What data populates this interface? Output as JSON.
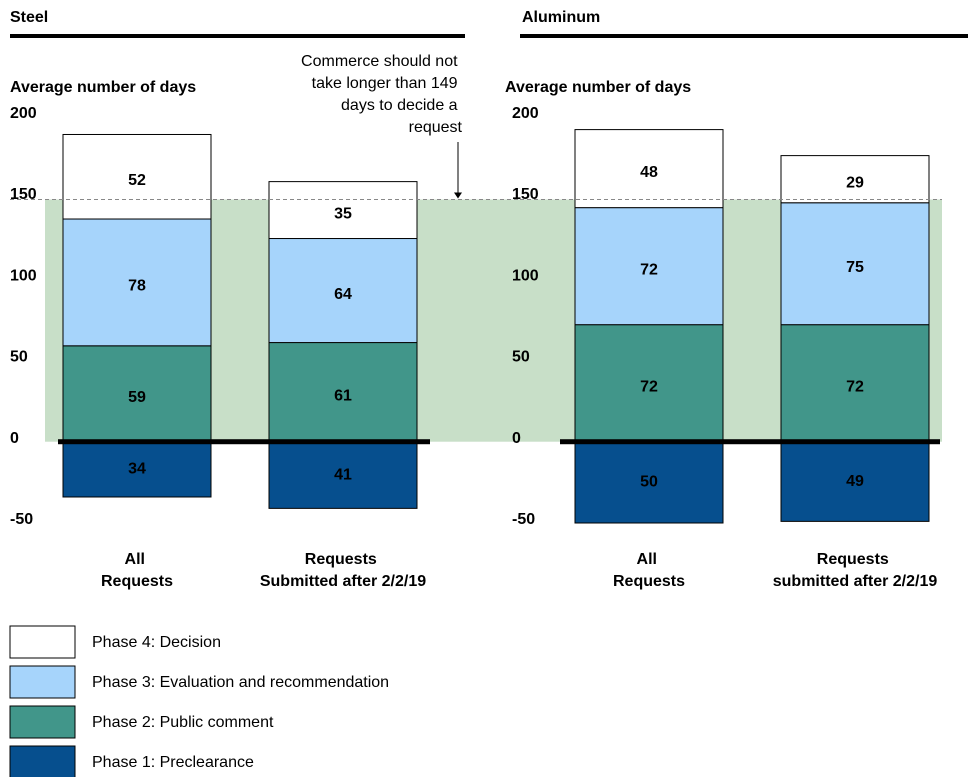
{
  "chart_data": [
    {
      "type": "bar",
      "stacked": true,
      "title": "Steel",
      "y_label": "Average number of days",
      "annotation": "Commerce should not take longer than 149 days to decide a request",
      "threshold": 149,
      "categories": [
        "All Requests",
        "Requests Submitted after 2/2/19"
      ],
      "series": [
        {
          "name": "Phase 1: Preclearance",
          "color": "#064f8e",
          "values": [
            -34,
            -41
          ],
          "value_labels": [
            "34",
            "41"
          ]
        },
        {
          "name": "Phase 2: Public comment",
          "color": "#41968a",
          "values": [
            59,
            61
          ]
        },
        {
          "name": "Phase 3: Evaluation and recommendation",
          "color": "#a6d4fb",
          "values": [
            78,
            64
          ]
        },
        {
          "name": "Phase 4: Decision",
          "color": "#ffffff",
          "values": [
            52,
            35
          ]
        }
      ],
      "ylim": [
        -50,
        200
      ],
      "yticks": [
        -50,
        0,
        50,
        100,
        150,
        200
      ]
    },
    {
      "type": "bar",
      "stacked": true,
      "title": "Aluminum",
      "y_label": "Average number of days",
      "threshold": 149,
      "categories": [
        "All Requests",
        "Requests submitted after 2/2/19"
      ],
      "series": [
        {
          "color": "#064f8e",
          "values": [
            -50,
            -49
          ],
          "value_labels": [
            "50",
            "49"
          ]
        },
        {
          "color": "#41968a",
          "values": [
            72,
            72
          ]
        },
        {
          "color": "#a6d4fb",
          "values": [
            72,
            75
          ]
        },
        {
          "color": "#ffffff",
          "values": [
            48,
            29
          ]
        }
      ],
      "ylim": [
        -50,
        200
      ],
      "yticks": [
        -50,
        0,
        50,
        100,
        150,
        200
      ]
    }
  ]
}
